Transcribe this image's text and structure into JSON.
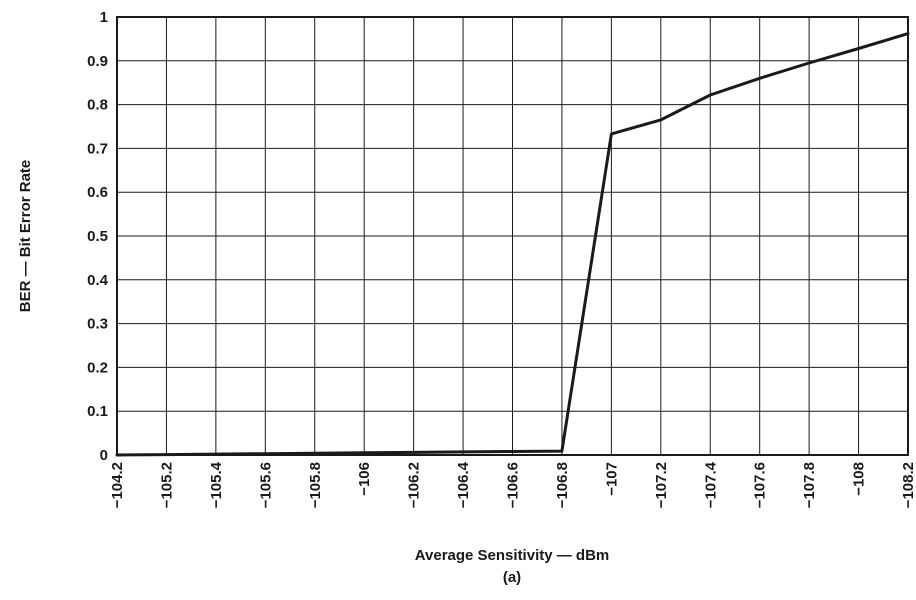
{
  "chart_data": {
    "type": "line",
    "xlabel": "Average Sensitivity — dBm",
    "sublabel": "(a)",
    "ylabel": "BER — Bit Error Rate",
    "x_tick_labels": [
      "−104.2",
      "−105.2",
      "−105.4",
      "−105.6",
      "−105.8",
      "−106",
      "−106.2",
      "−106.4",
      "−106.6",
      "−106.8",
      "−107",
      "−107.2",
      "−107.4",
      "−107.6",
      "−107.8",
      "−108",
      "−108.2"
    ],
    "y_tick_labels": [
      "0",
      "0.1",
      "0.2",
      "0.3",
      "0.4",
      "0.5",
      "0.6",
      "0.7",
      "0.8",
      "0.9",
      "1"
    ],
    "ylim": [
      0,
      1
    ],
    "grid": true,
    "series": [
      {
        "x_index": [
          0,
          1,
          2,
          3,
          4,
          5,
          6,
          7,
          8,
          9,
          10,
          11,
          12,
          13,
          14,
          15,
          16
        ],
        "x": [
          -104.2,
          -105.2,
          -105.4,
          -105.6,
          -105.8,
          -106,
          -106.2,
          -106.4,
          -106.6,
          -106.8,
          -107,
          -107.2,
          -107.4,
          -107.6,
          -107.8,
          -108,
          -108.2
        ],
        "y": [
          0.0,
          0.001,
          0.002,
          0.003,
          0.004,
          0.005,
          0.006,
          0.007,
          0.008,
          0.009,
          0.733,
          0.765,
          0.822,
          0.86,
          0.895,
          0.928,
          0.962
        ]
      }
    ]
  }
}
